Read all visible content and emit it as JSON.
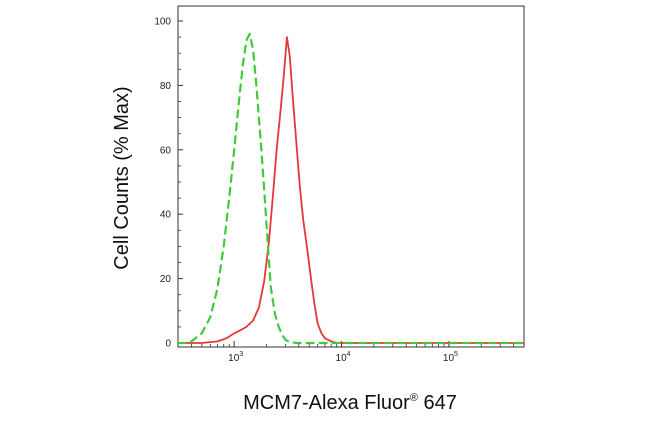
{
  "chart_data": {
    "type": "line",
    "xlabel": {
      "prefix": "MCM7-Alexa Fluor",
      "mark": "®",
      "suffix": " 647"
    },
    "ylabel": "Cell Counts (% Max)",
    "x_scale": "log",
    "xlim": [
      300,
      500000
    ],
    "ylim": [
      0,
      100
    ],
    "y_ticks": [
      0,
      20,
      40,
      60,
      80,
      100
    ],
    "y_tick_labels": [
      "0",
      "20",
      "40",
      "60",
      "80",
      "100"
    ],
    "x_ticks": [
      1000,
      10000,
      100000
    ],
    "x_tick_labels": [
      {
        "base": "10",
        "exp": "3"
      },
      {
        "base": "10",
        "exp": "4"
      },
      {
        "base": "10",
        "exp": "5"
      }
    ],
    "grid": false,
    "legend": "none",
    "series": [
      {
        "color": "#e8353a",
        "style": "solid",
        "x": [
          300,
          500,
          700,
          850,
          1000,
          1150,
          1300,
          1500,
          1700,
          1900,
          2100,
          2300,
          2500,
          2700,
          2900,
          3100,
          3300,
          3500,
          3800,
          4100,
          4400,
          4800,
          5200,
          5600,
          6000,
          6500,
          7000,
          8000,
          9000,
          10000,
          20000,
          100000,
          500000
        ],
        "y": [
          0,
          0,
          0.5,
          1.5,
          3,
          4,
          5,
          7,
          11,
          19,
          31,
          46,
          61,
          72,
          83,
          95,
          89,
          77,
          62,
          48,
          38,
          29,
          20,
          12,
          6,
          3,
          1.5,
          0.5,
          0,
          0,
          0,
          0,
          0
        ]
      },
      {
        "color": "#41c93a",
        "style": "dashed",
        "x": [
          300,
          350,
          400,
          500,
          600,
          700,
          800,
          900,
          1000,
          1100,
          1200,
          1300,
          1400,
          1500,
          1600,
          1700,
          1800,
          1900,
          2000,
          2100,
          2200,
          2400,
          2600,
          2800,
          3000,
          3300,
          3800,
          5000,
          500000
        ],
        "y": [
          0,
          0,
          0.5,
          3,
          8,
          17,
          30,
          45,
          60,
          74,
          86,
          94,
          96,
          91,
          81,
          70,
          59,
          48,
          37,
          26,
          17,
          9,
          5,
          2.5,
          1,
          0.3,
          0,
          0,
          0
        ]
      }
    ]
  }
}
